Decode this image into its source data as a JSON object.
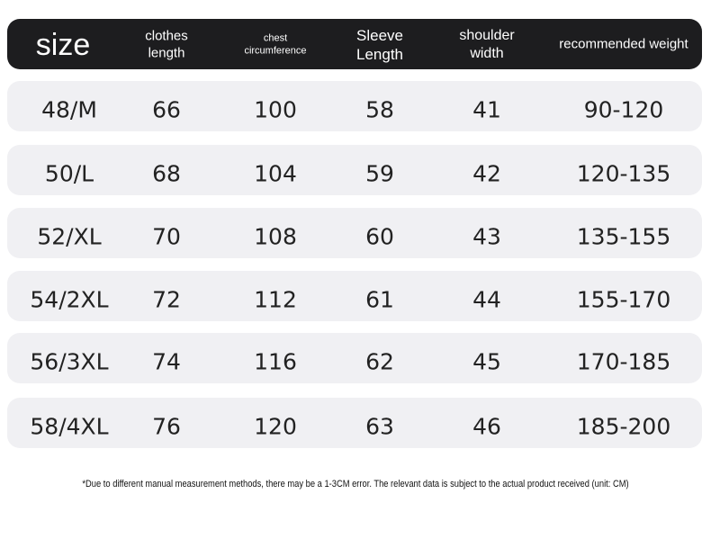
{
  "header": {
    "columns": [
      "size",
      "clothes length",
      "chest circumference",
      "Sleeve Length",
      "shoulder width",
      "recommended weight"
    ]
  },
  "table": {
    "rows": [
      [
        "48/M",
        66,
        100,
        58,
        41,
        "90-120"
      ],
      [
        "50/L",
        68,
        104,
        59,
        42,
        "120-135"
      ],
      [
        "52/XL",
        70,
        108,
        60,
        43,
        "135-155"
      ],
      [
        "54/2XL",
        72,
        112,
        61,
        44,
        "155-170"
      ],
      [
        "56/3XL",
        74,
        116,
        62,
        45,
        "170-185"
      ],
      [
        "58/4XL",
        76,
        120,
        63,
        46,
        "185-200"
      ]
    ]
  },
  "note": "*Due to different manual measurement methods, there may be a 1-3CM error. The relevant data is subject to the actual product received (unit: CM)"
}
